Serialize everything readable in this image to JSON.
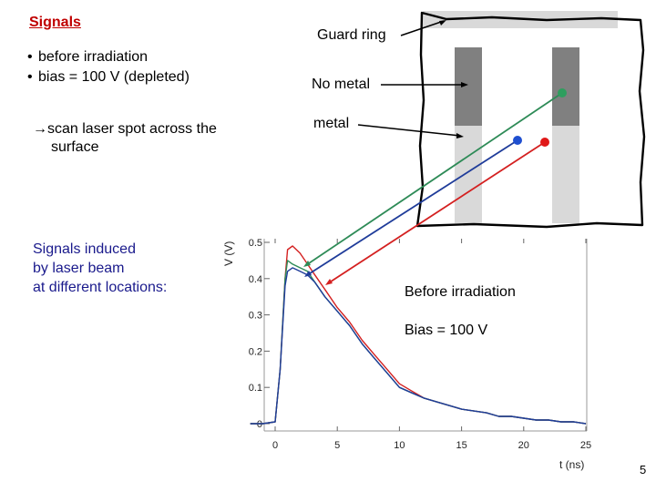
{
  "slide": {
    "title": "Signals",
    "bullets": [
      "before irradiation",
      "bias = 100 V (depleted)"
    ],
    "scan_note_line1": "→scan laser spot across the",
    "scan_note_line2": "surface",
    "induced_lines": [
      "Signals induced",
      "by laser beam",
      "at different locations:"
    ],
    "labels": {
      "guard_ring": "Guard ring",
      "no_metal": "No metal",
      "metal": "metal"
    },
    "annotations": {
      "before_irradiation": "Before irradiation",
      "bias": "Bias = 100 V"
    },
    "page_number": "5",
    "colors": {
      "title": "#c00000",
      "green": "#2e8b57",
      "blue": "#1f3c9a",
      "red": "#d42020",
      "pad_dark": "#808080",
      "pad_light": "#d9d9d9"
    }
  },
  "chart_data": {
    "type": "line",
    "xlabel": "t (ns)",
    "ylabel": "V (V)",
    "xlim": [
      -2,
      25
    ],
    "ylim": [
      0,
      0.5
    ],
    "xticks": [
      0,
      5,
      10,
      15,
      20,
      25
    ],
    "yticks": [
      0,
      0.1,
      0.2,
      0.3,
      0.4,
      0.5
    ],
    "grid": false,
    "series": [
      {
        "color": "#d42020",
        "x": [
          -2,
          -1,
          0,
          0.4,
          0.8,
          1.0,
          1.4,
          2.0,
          2.6,
          3.2,
          4,
          5,
          6,
          7,
          8,
          9,
          10,
          11,
          12,
          13,
          14,
          15,
          16,
          17,
          18,
          19,
          20,
          21,
          22,
          23,
          24,
          25
        ],
        "y": [
          0.0,
          0.0,
          0.005,
          0.15,
          0.4,
          0.48,
          0.49,
          0.47,
          0.44,
          0.41,
          0.37,
          0.32,
          0.28,
          0.23,
          0.19,
          0.15,
          0.11,
          0.09,
          0.07,
          0.06,
          0.05,
          0.04,
          0.035,
          0.03,
          0.02,
          0.02,
          0.015,
          0.01,
          0.01,
          0.005,
          0.005,
          0.0
        ]
      },
      {
        "color": "#2e8b57",
        "x": [
          -2,
          -1,
          0,
          0.4,
          0.8,
          1.0,
          1.4,
          2.0,
          2.6,
          3.2,
          4,
          5,
          6,
          7,
          8,
          9,
          10,
          11,
          12,
          13,
          14,
          15,
          16,
          17,
          18,
          19,
          20,
          21,
          22,
          23,
          24,
          25
        ],
        "y": [
          0.0,
          0.0,
          0.005,
          0.15,
          0.4,
          0.45,
          0.44,
          0.43,
          0.42,
          0.39,
          0.35,
          0.31,
          0.27,
          0.22,
          0.18,
          0.14,
          0.1,
          0.085,
          0.07,
          0.06,
          0.05,
          0.04,
          0.035,
          0.03,
          0.02,
          0.02,
          0.015,
          0.01,
          0.01,
          0.005,
          0.005,
          0.0
        ]
      },
      {
        "color": "#1f3c9a",
        "x": [
          -2,
          -1,
          0,
          0.4,
          0.8,
          1.0,
          1.4,
          2.0,
          2.6,
          3.2,
          4,
          5,
          6,
          7,
          8,
          9,
          10,
          11,
          12,
          13,
          14,
          15,
          16,
          17,
          18,
          19,
          20,
          21,
          22,
          23,
          24,
          25
        ],
        "y": [
          0.0,
          0.0,
          0.005,
          0.15,
          0.38,
          0.42,
          0.43,
          0.42,
          0.41,
          0.39,
          0.35,
          0.31,
          0.27,
          0.22,
          0.18,
          0.14,
          0.1,
          0.085,
          0.07,
          0.06,
          0.05,
          0.04,
          0.035,
          0.03,
          0.02,
          0.02,
          0.015,
          0.01,
          0.01,
          0.005,
          0.005,
          0.0
        ]
      }
    ]
  }
}
